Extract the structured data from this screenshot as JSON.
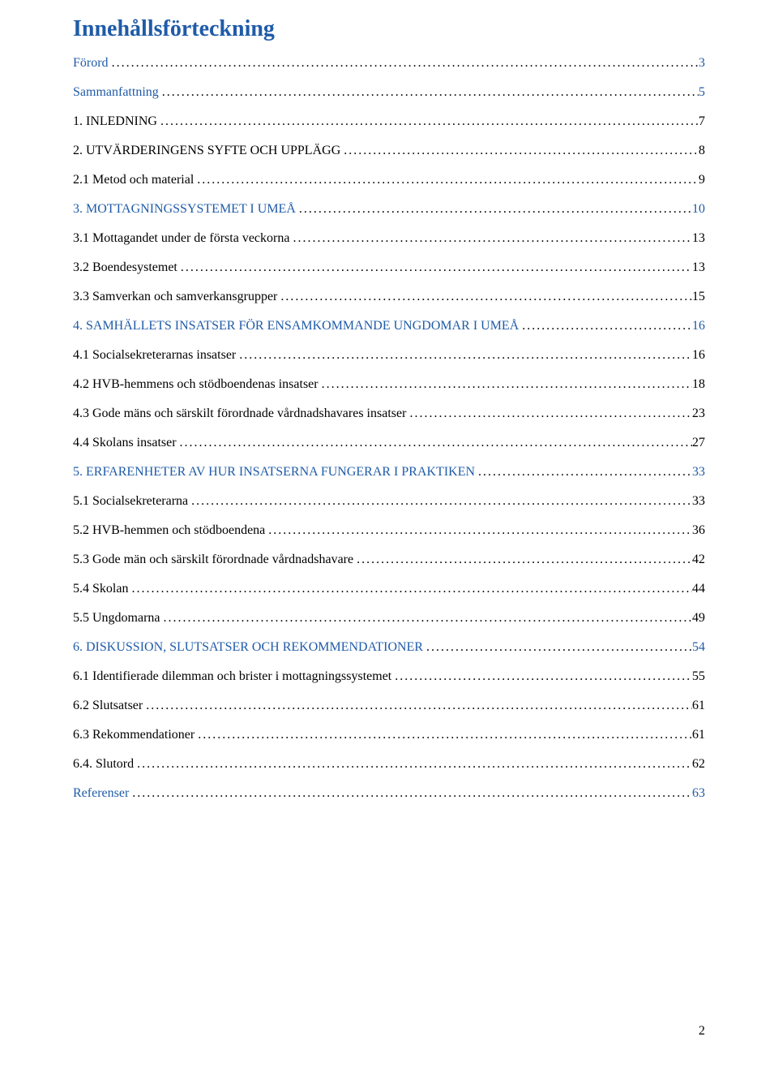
{
  "title": "Innehållsförteckning",
  "page_number": "2",
  "colors": {
    "heading": "#1f5ba8",
    "link": "#1f5ba8",
    "text": "#000000",
    "background": "#ffffff"
  },
  "entries": [
    {
      "label": "Förord",
      "page": "3",
      "level": 0,
      "style": "link"
    },
    {
      "label": "Sammanfattning",
      "page": "5",
      "level": 0,
      "style": "link"
    },
    {
      "label": "1. INLEDNING",
      "page": "7",
      "level": 0,
      "style": "plain"
    },
    {
      "label": "2. UTVÄRDERINGENS SYFTE OCH UPPLÄGG",
      "page": "8",
      "level": 0,
      "style": "plain"
    },
    {
      "label": "2.1 Metod och material",
      "page": "9",
      "level": 1,
      "style": "plain"
    },
    {
      "label": "3. MOTTAGNINGSSYSTEMET I UMEÅ",
      "page": "10",
      "level": 0,
      "style": "link",
      "smallcaps": true
    },
    {
      "label": "3.1 Mottagandet under de första veckorna",
      "page": "13",
      "level": 1,
      "style": "plain"
    },
    {
      "label": "3.2 Boendesystemet",
      "page": "13",
      "level": 1,
      "style": "plain"
    },
    {
      "label": "3.3 Samverkan och samverkansgrupper",
      "page": "15",
      "level": 1,
      "style": "plain"
    },
    {
      "label": "4. SAMHÄLLETS INSATSER FÖR ENSAMKOMMANDE UNGDOMAR I UMEÅ",
      "page": "16",
      "level": 0,
      "style": "link",
      "smallcaps": true
    },
    {
      "label": "4.1 Socialsekreterarnas insatser",
      "page": "16",
      "level": 1,
      "style": "plain"
    },
    {
      "label": "4.2 HVB-hemmens och stödboendenas insatser",
      "page": "18",
      "level": 1,
      "style": "plain"
    },
    {
      "label": "4.3 Gode mäns och särskilt förordnade vårdnadshavares insatser",
      "page": "23",
      "level": 1,
      "style": "plain"
    },
    {
      "label": "4.4 Skolans insatser",
      "page": "27",
      "level": 1,
      "style": "plain"
    },
    {
      "label": "5. ERFARENHETER AV HUR INSATSERNA FUNGERAR I PRAKTIKEN",
      "page": "33",
      "level": 0,
      "style": "link",
      "smallcaps": true
    },
    {
      "label": "5.1 Socialsekreterarna",
      "page": "33",
      "level": 1,
      "style": "plain"
    },
    {
      "label": "5.2 HVB-hemmen och stödboendena",
      "page": "36",
      "level": 1,
      "style": "plain"
    },
    {
      "label": "5.3 Gode män och särskilt förordnade vårdnadshavare",
      "page": "42",
      "level": 1,
      "style": "plain"
    },
    {
      "label": "5.4 Skolan",
      "page": "44",
      "level": 1,
      "style": "plain"
    },
    {
      "label": "5.5 Ungdomarna",
      "page": "49",
      "level": 1,
      "style": "plain"
    },
    {
      "label": "6. DISKUSSION, SLUTSATSER OCH REKOMMENDATIONER",
      "page": "54",
      "level": 0,
      "style": "link",
      "smallcaps": true
    },
    {
      "label": "6.1 Identifierade dilemman och brister i mottagningssystemet",
      "page": "55",
      "level": 1,
      "style": "plain"
    },
    {
      "label": "6.2 Slutsatser",
      "page": "61",
      "level": 1,
      "style": "plain"
    },
    {
      "label": "6.3 Rekommendationer",
      "page": "61",
      "level": 1,
      "style": "plain"
    },
    {
      "label": "6.4. Slutord",
      "page": "62",
      "level": 1,
      "style": "plain"
    },
    {
      "label": "Referenser",
      "page": "63",
      "level": 0,
      "style": "link"
    }
  ]
}
